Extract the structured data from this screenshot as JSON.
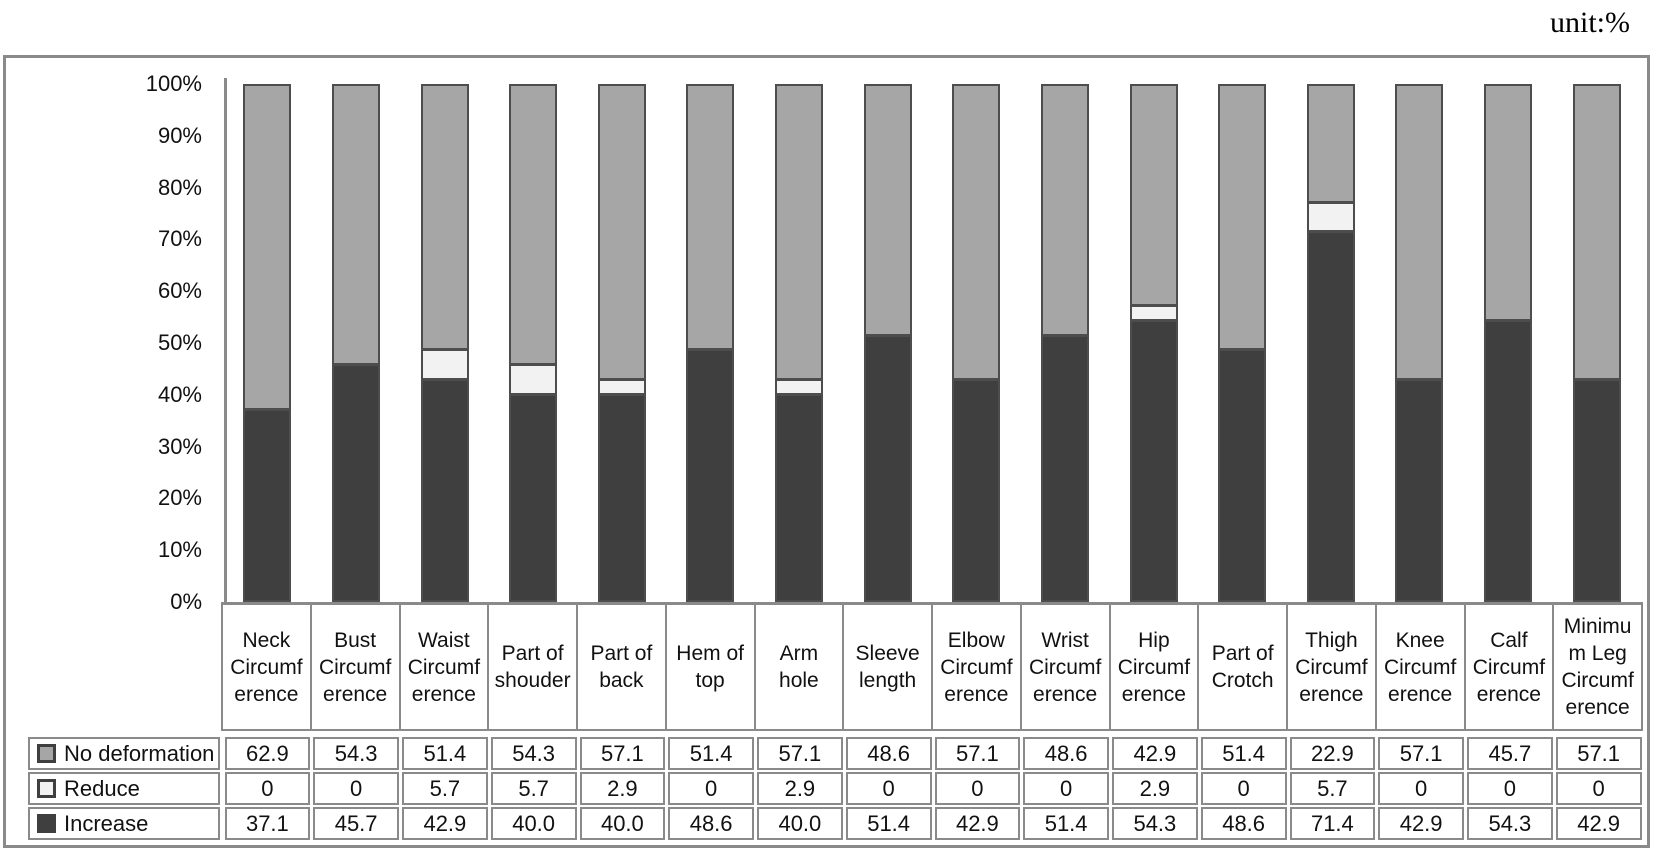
{
  "unit_label": "unit:%",
  "colors": {
    "no_deformation": "#a6a6a6",
    "reduce": "#f2f2f2",
    "increase": "#3f3f3f",
    "segment_border": "#4d4d4d",
    "grid_border": "#8a8a8a",
    "text": "#111111"
  },
  "y_axis": {
    "min": 0,
    "max": 100,
    "step": 10,
    "tick_labels": [
      "0%",
      "10%",
      "20%",
      "30%",
      "40%",
      "50%",
      "60%",
      "70%",
      "80%",
      "90%",
      "100%"
    ]
  },
  "chart_data": {
    "type": "bar",
    "stacked": true,
    "percent_stacked": true,
    "title": "",
    "unit": "unit:%",
    "grid": false,
    "legend_position": "table-left",
    "ylim": [
      0,
      100
    ],
    "categories": [
      "Neck\nCircumf\nerence",
      "Bust\nCircumf\nerence",
      "Waist\nCircumf\nerence",
      "Part of\nshouder",
      "Part of\nback",
      "Hem of\ntop",
      "Arm\nhole",
      "Sleeve\nlength",
      "Elbow\nCircumf\nerence",
      "Wrist\nCircumf\nerence",
      "Hip\nCircumf\nerence",
      "Part of\nCrotch",
      "Thigh\nCircumf\nerence",
      "Knee\nCircumf\nerence",
      "Calf\nCircumf\nerence",
      "Minimu\nm Leg\nCircumf\nerence"
    ],
    "series": [
      {
        "name": "No deformation",
        "color_key": "no_deformation",
        "values": [
          "62.9",
          "54.3",
          "51.4",
          "54.3",
          "57.1",
          "51.4",
          "57.1",
          "48.6",
          "57.1",
          "48.6",
          "42.9",
          "51.4",
          "22.9",
          "57.1",
          "45.7",
          "57.1"
        ]
      },
      {
        "name": "Reduce",
        "color_key": "reduce",
        "values": [
          "0",
          "0",
          "5.7",
          "5.7",
          "2.9",
          "0",
          "2.9",
          "0",
          "0",
          "0",
          "2.9",
          "0",
          "5.7",
          "0",
          "0",
          "0"
        ]
      },
      {
        "name": "Increase",
        "color_key": "increase",
        "values": [
          "37.1",
          "45.7",
          "42.9",
          "40.0",
          "40.0",
          "48.6",
          "40.0",
          "51.4",
          "42.9",
          "51.4",
          "54.3",
          "48.6",
          "71.4",
          "42.9",
          "54.3",
          "42.9"
        ]
      }
    ],
    "stack_order_bottom_to_top": [
      "Increase",
      "Reduce",
      "No deformation"
    ]
  }
}
